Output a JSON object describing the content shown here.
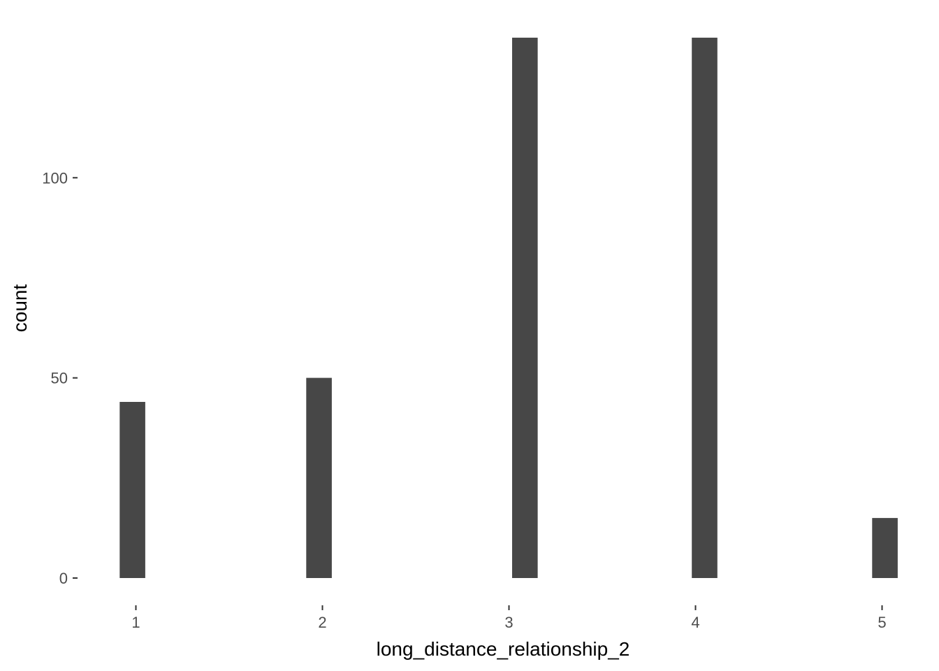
{
  "chart_data": {
    "type": "histogram",
    "xlabel": "long_distance_relationship_2",
    "ylabel": "count",
    "x_ticks": [
      1,
      2,
      3,
      4,
      5
    ],
    "y_ticks": [
      0,
      50,
      100
    ],
    "xlim": [
      0.0,
      5.04
    ],
    "ylim": [
      0,
      135
    ],
    "bar_color": "#474747",
    "bars": [
      {
        "x0": 0.913,
        "x1": 1.05,
        "count": 44
      },
      {
        "x0": 1.913,
        "x1": 2.05,
        "count": 50
      },
      {
        "x0": 3.017,
        "x1": 3.154,
        "count": 135
      },
      {
        "x0": 3.98,
        "x1": 4.117,
        "count": 135
      },
      {
        "x0": 4.947,
        "x1": 5.084,
        "count": 15
      }
    ],
    "grid": false,
    "legend": "none"
  }
}
